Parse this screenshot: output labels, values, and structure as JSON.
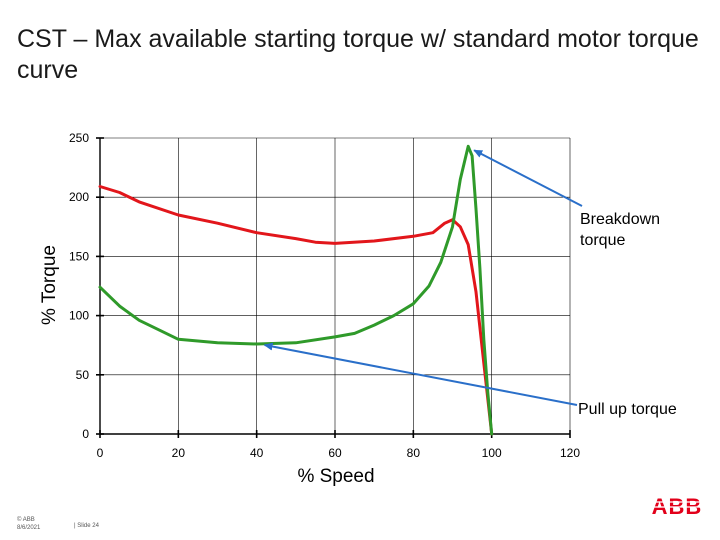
{
  "slide": {
    "title": "CST – Max available starting torque w/ standard motor torque curve",
    "footer_copyright": "© ABB",
    "footer_date": "8/6/2021",
    "footer_slide": "| Slide 24",
    "logo_text": "ABB",
    "brand_color": "#e2001a"
  },
  "chart_data": {
    "type": "line",
    "xlabel": "% Speed",
    "ylabel": "% Torque",
    "xlim": [
      0,
      120
    ],
    "ylim": [
      0,
      250
    ],
    "xticks": [
      0,
      20,
      40,
      60,
      80,
      100,
      120
    ],
    "yticks": [
      0,
      50,
      100,
      150,
      200,
      250
    ],
    "grid": true,
    "series": [
      {
        "color": "#e2161b",
        "points": [
          [
            0,
            209
          ],
          [
            5,
            204
          ],
          [
            10,
            196
          ],
          [
            20,
            185
          ],
          [
            30,
            178
          ],
          [
            40,
            170
          ],
          [
            50,
            165
          ],
          [
            55,
            162
          ],
          [
            60,
            161
          ],
          [
            70,
            163
          ],
          [
            80,
            167
          ],
          [
            85,
            170
          ],
          [
            88,
            178
          ],
          [
            90,
            181
          ],
          [
            92,
            175
          ],
          [
            94,
            160
          ],
          [
            96,
            120
          ],
          [
            98,
            60
          ],
          [
            100,
            0
          ]
        ]
      },
      {
        "color": "#2f9a2a",
        "points": [
          [
            0,
            124
          ],
          [
            5,
            108
          ],
          [
            10,
            96
          ],
          [
            15,
            88
          ],
          [
            20,
            80
          ],
          [
            30,
            77
          ],
          [
            40,
            76
          ],
          [
            50,
            77
          ],
          [
            60,
            82
          ],
          [
            65,
            85
          ],
          [
            70,
            92
          ],
          [
            75,
            100
          ],
          [
            80,
            110
          ],
          [
            84,
            125
          ],
          [
            87,
            145
          ],
          [
            90,
            175
          ],
          [
            92,
            215
          ],
          [
            94,
            243
          ],
          [
            95,
            235
          ],
          [
            96,
            190
          ],
          [
            97,
            140
          ],
          [
            98,
            80
          ],
          [
            99,
            35
          ],
          [
            100,
            0
          ]
        ]
      }
    ],
    "annotations": [
      {
        "text": "Breakdown torque",
        "lines": [
          "Breakdown",
          "torque"
        ],
        "target": [
          94,
          243
        ]
      },
      {
        "text": "Pull up torque",
        "lines": [
          "Pull up torque"
        ],
        "target": [
          41,
          76
        ]
      }
    ],
    "annotation_color": "#2a6fc9"
  }
}
